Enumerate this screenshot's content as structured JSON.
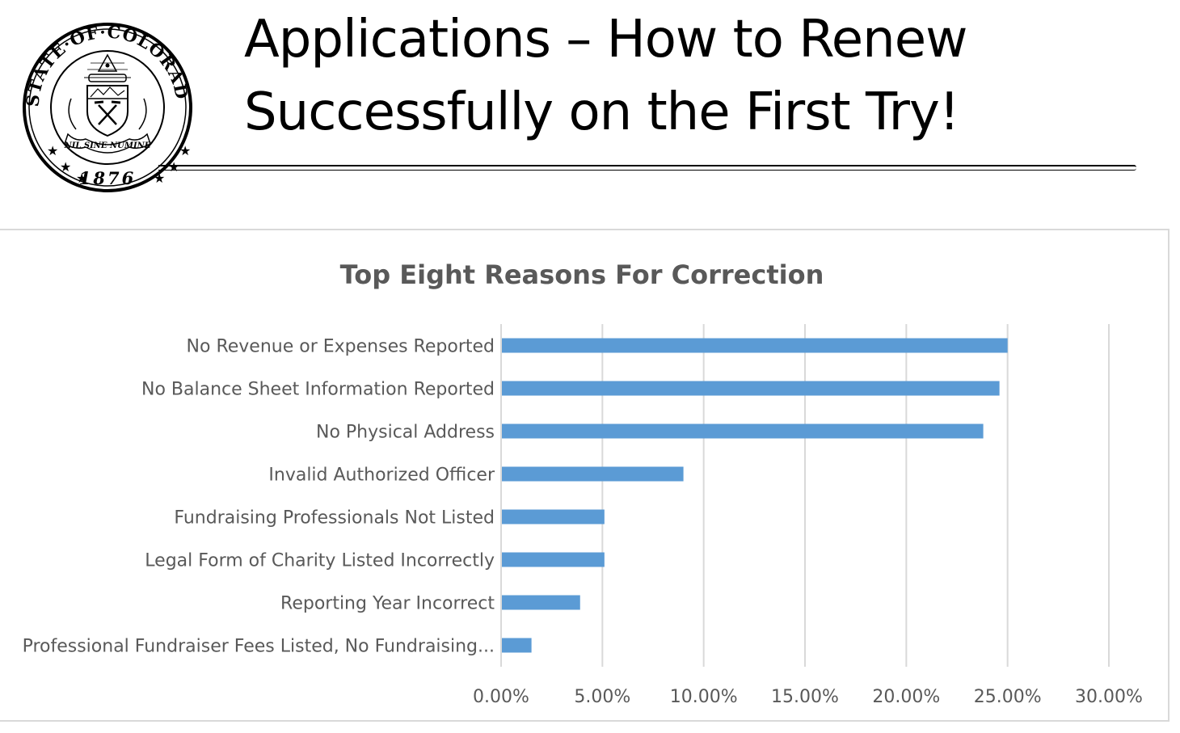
{
  "slide": {
    "title_line1": "Applications – How to Renew",
    "title_line2": "Successfully on the First Try!",
    "seal": {
      "top_text": "STATE·OF·COLORADO",
      "motto": "NIL SINE NUMINE",
      "year": "1876"
    }
  },
  "chart_data": {
    "type": "bar",
    "orientation": "horizontal",
    "title": "Top Eight Reasons For Correction",
    "xlabel": "",
    "ylabel": "",
    "categories": [
      "No Revenue or Expenses Reported",
      "No Balance Sheet Information Reported",
      "No Physical Address",
      "Invalid Authorized Officer",
      "Fundraising Professionals Not Listed",
      "Legal Form of Charity Listed Incorrectly",
      "Reporting Year Incorrect",
      "Professional Fundraiser Fees Listed, No Fundraising..."
    ],
    "values": [
      25.0,
      24.6,
      23.8,
      9.0,
      5.1,
      5.1,
      3.9,
      1.5
    ],
    "xlim": [
      0,
      30
    ],
    "ticks": [
      "0.00%",
      "5.00%",
      "10.00%",
      "15.00%",
      "20.00%",
      "25.00%",
      "30.00%"
    ],
    "grid": true,
    "legend": "none",
    "bar_color": "#5b9bd5",
    "grid_color": "#d9d9d9"
  }
}
